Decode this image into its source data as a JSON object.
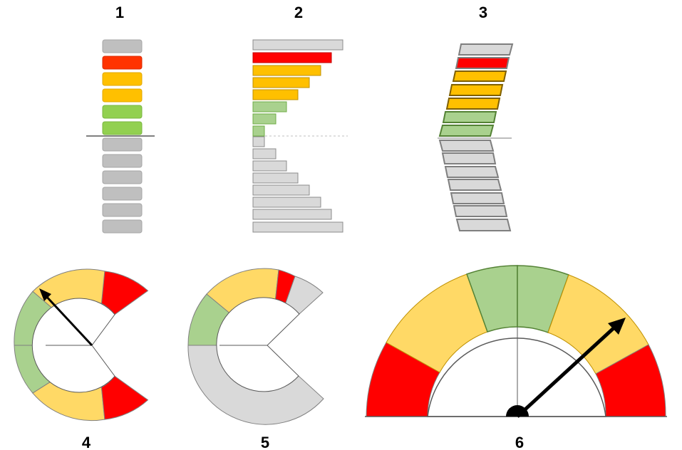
{
  "labels": [
    "1",
    "2",
    "3",
    "4",
    "5",
    "6"
  ],
  "colors": {
    "red": "#ff0000",
    "red_orange": "#ff3300",
    "yellow": "#ffc000",
    "light_yellow": "#ffd966",
    "green": "#92d050",
    "light_green": "#a9d18e",
    "gray": "#bfbfbf",
    "light_gray": "#d9d9d9"
  },
  "panels": [
    {
      "label_index": 0,
      "kind": "stacked-pills",
      "segments_above": [
        "red_orange",
        "yellow",
        "yellow",
        "green",
        "green"
      ],
      "active_level": 5,
      "levels": 6
    },
    {
      "label_index": 1,
      "kind": "tapered-bars",
      "segments_above": [
        "red",
        "yellow",
        "yellow",
        "yellow",
        "light_green",
        "light_green",
        "light_green"
      ],
      "active_level": 7,
      "levels": 8
    },
    {
      "label_index": 2,
      "kind": "slanted-bars",
      "segments_above": [
        "red",
        "yellow",
        "yellow",
        "yellow",
        "light_green",
        "light_green"
      ],
      "active_level": 6,
      "levels": 7
    },
    {
      "label_index": 3,
      "kind": "gauge-ring",
      "segments": [
        "red",
        "light_yellow",
        "light_green",
        "light_green",
        "light_yellow",
        "red"
      ],
      "needle_fraction": 0.38
    },
    {
      "label_index": 4,
      "kind": "gauge-ring-filled",
      "filled": [
        "light_green",
        "light_yellow",
        "red"
      ],
      "fill_fraction": 0.5
    },
    {
      "label_index": 5,
      "kind": "semicircle-gauge",
      "segments": [
        "red",
        "light_yellow",
        "light_green",
        "light_green",
        "light_yellow",
        "red"
      ],
      "needle_fraction": 0.78
    }
  ]
}
